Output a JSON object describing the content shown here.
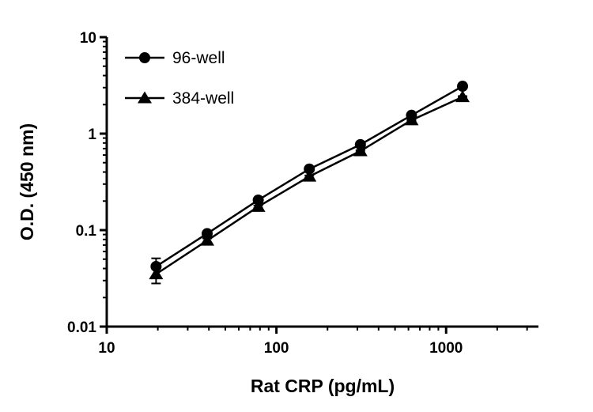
{
  "chart_data": {
    "type": "line",
    "title": "",
    "xlabel": "Rat CRP (pg/mL)",
    "ylabel": "O.D. (450 nm)",
    "x_scale": "log",
    "y_scale": "log",
    "xlim": [
      10,
      3500
    ],
    "ylim": [
      0.01,
      10
    ],
    "x_ticks": [
      10,
      100,
      1000
    ],
    "y_ticks": [
      0.01,
      0.1,
      1,
      10
    ],
    "grid": false,
    "legend_position": "top-left",
    "color": "#000000",
    "background": "#ffffff",
    "x": [
      19.53,
      39.06,
      78.13,
      156.25,
      312.5,
      625,
      1250
    ],
    "series": [
      {
        "name": "96-well",
        "marker": "circle",
        "values": [
          0.042,
          0.092,
          0.205,
          0.43,
          0.77,
          1.55,
          3.1
        ],
        "errors": [
          0.009,
          0.004,
          0.006,
          0.01,
          0.015,
          0.03,
          0.06
        ]
      },
      {
        "name": "384-well",
        "marker": "triangle",
        "values": [
          0.035,
          0.078,
          0.175,
          0.36,
          0.66,
          1.38,
          2.4
        ],
        "errors": [
          0.007,
          0.004,
          0.005,
          0.009,
          0.014,
          0.025,
          0.05
        ]
      }
    ]
  }
}
